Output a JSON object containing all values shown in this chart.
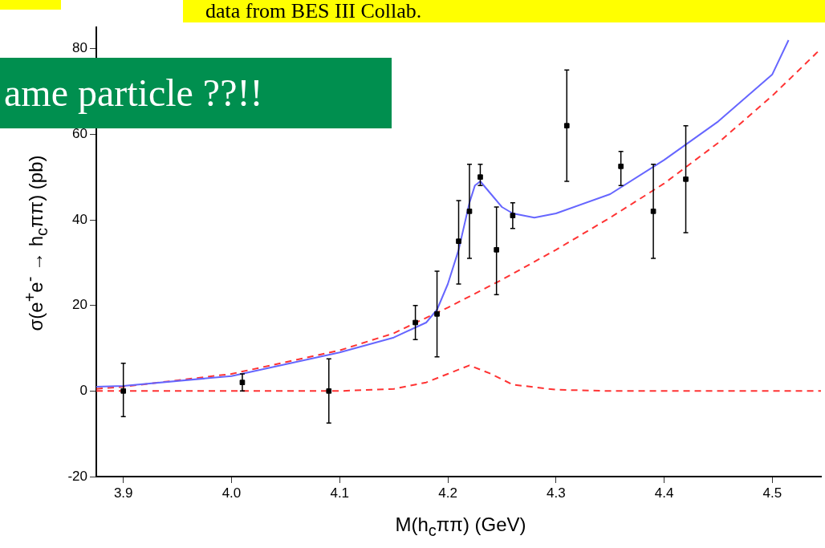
{
  "chart_data": {
    "type": "scatter",
    "xlabel": "M(h$_{c}$ππ) (GeV)",
    "ylabel": "σ(e$^{+}$e$^{-}$ → h$_{c}$ππ) (pb)",
    "xlim": [
      3.875,
      4.545
    ],
    "ylim": [
      -20,
      85
    ],
    "xticks": [
      {
        "value": 3.9,
        "label": "3.9"
      },
      {
        "value": 4,
        "label": "4.0"
      },
      {
        "value": 4.1,
        "label": "4.1"
      },
      {
        "value": 4.2,
        "label": "4.2"
      },
      {
        "value": 4.3,
        "label": "4.3"
      },
      {
        "value": 4.4,
        "label": "4.4"
      },
      {
        "value": 4.5,
        "label": "4.5"
      }
    ],
    "yticks": [
      -20,
      0,
      20,
      40,
      60,
      80
    ],
    "legend": false,
    "grid": false,
    "marker": "square",
    "annotations": [
      "data from BES III Collab.",
      "ame particle ??!!"
    ],
    "series": [
      {
        "color": "#000000",
        "x": [
          3.9,
          4.01,
          4.09,
          4.17,
          4.19,
          4.21,
          4.22,
          4.23,
          4.245,
          4.26,
          4.31,
          4.36,
          4.39,
          4.42
        ],
        "values": [
          0,
          2,
          0,
          16,
          18,
          35,
          42,
          50,
          33,
          41,
          62,
          52.5,
          42,
          49.5
        ],
        "errors": [
          [
            -6,
            6.5
          ],
          [
            0,
            4
          ],
          [
            -7.5,
            7.5
          ],
          [
            12,
            20
          ],
          [
            8,
            28
          ],
          [
            25,
            44.5
          ],
          [
            31,
            53
          ],
          [
            48,
            53
          ],
          [
            22.5,
            43
          ],
          [
            38,
            44
          ],
          [
            49,
            75
          ],
          [
            48,
            56
          ],
          [
            31,
            53
          ],
          [
            37,
            62
          ]
        ]
      },
      {
        "type": "line",
        "color": "#6666ff",
        "marker": "none",
        "line_style": "solid",
        "x": [
          3.875,
          3.9,
          4.0,
          4.1,
          4.15,
          4.18,
          4.19,
          4.2,
          4.21,
          4.22,
          4.225,
          4.23,
          4.24,
          4.25,
          4.26,
          4.28,
          4.3,
          4.35,
          4.4,
          4.45,
          4.5,
          4.515
        ],
        "values": [
          1,
          1.2,
          3.5,
          9,
          12.5,
          16,
          19,
          25,
          33,
          44,
          48,
          49,
          46,
          43,
          41.5,
          40.5,
          41.5,
          46,
          54,
          63,
          74,
          82
        ]
      },
      {
        "type": "line",
        "color": "#ff3333",
        "marker": "none",
        "line_style": "dashed",
        "x": [
          3.875,
          3.9,
          4.0,
          4.1,
          4.15,
          4.2,
          4.25,
          4.3,
          4.35,
          4.4,
          4.45,
          4.5,
          4.545
        ],
        "values": [
          0.5,
          1,
          4,
          9.5,
          13.5,
          19.5,
          26,
          33,
          40.5,
          48.5,
          58,
          69,
          80
        ]
      },
      {
        "type": "line",
        "color": "#ff3333",
        "marker": "none",
        "line_style": "dashed",
        "x": [
          3.875,
          4.1,
          4.15,
          4.18,
          4.2,
          4.22,
          4.24,
          4.26,
          4.3,
          4.35,
          4.545
        ],
        "values": [
          0,
          0,
          0.5,
          2,
          4,
          6,
          4,
          1.5,
          0.3,
          0,
          0
        ]
      }
    ]
  }
}
